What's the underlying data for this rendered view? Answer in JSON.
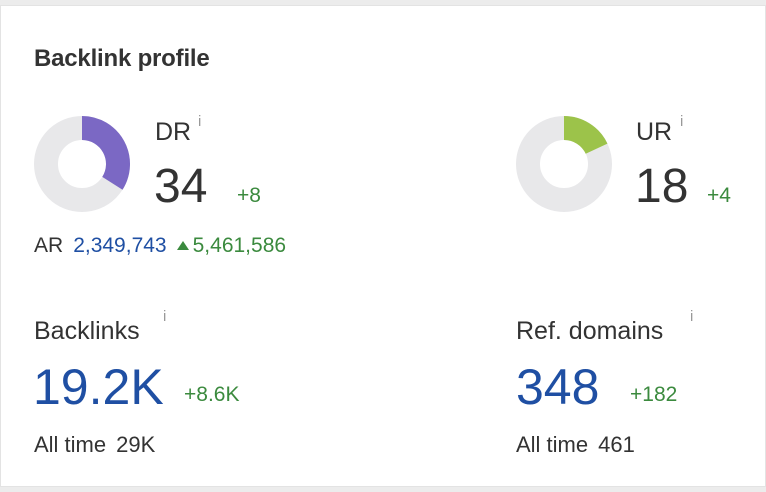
{
  "title": "Backlink profile",
  "dr": {
    "label": "DR",
    "info": "i",
    "value": "34",
    "delta": "+8",
    "fraction": 0.34,
    "color": "#7b68c4"
  },
  "ur": {
    "label": "UR",
    "info": "i",
    "value": "18",
    "delta": "+4",
    "fraction": 0.18,
    "color": "#9cc34a"
  },
  "ar": {
    "label": "AR",
    "value": "2,349,743",
    "delta": "5,461,586"
  },
  "backlinks": {
    "label": "Backlinks",
    "info": "i",
    "value": "19.2K",
    "delta": "+8.6K",
    "alltime_label": "All time",
    "alltime_value": "29K"
  },
  "ref_domains": {
    "label": "Ref. domains",
    "info": "i",
    "value": "348",
    "delta": "+182",
    "alltime_label": "All time",
    "alltime_value": "461"
  },
  "colors": {
    "track": "#e8e8ea",
    "positive": "#3b8a3e",
    "link_blue": "#1f4fa3"
  }
}
